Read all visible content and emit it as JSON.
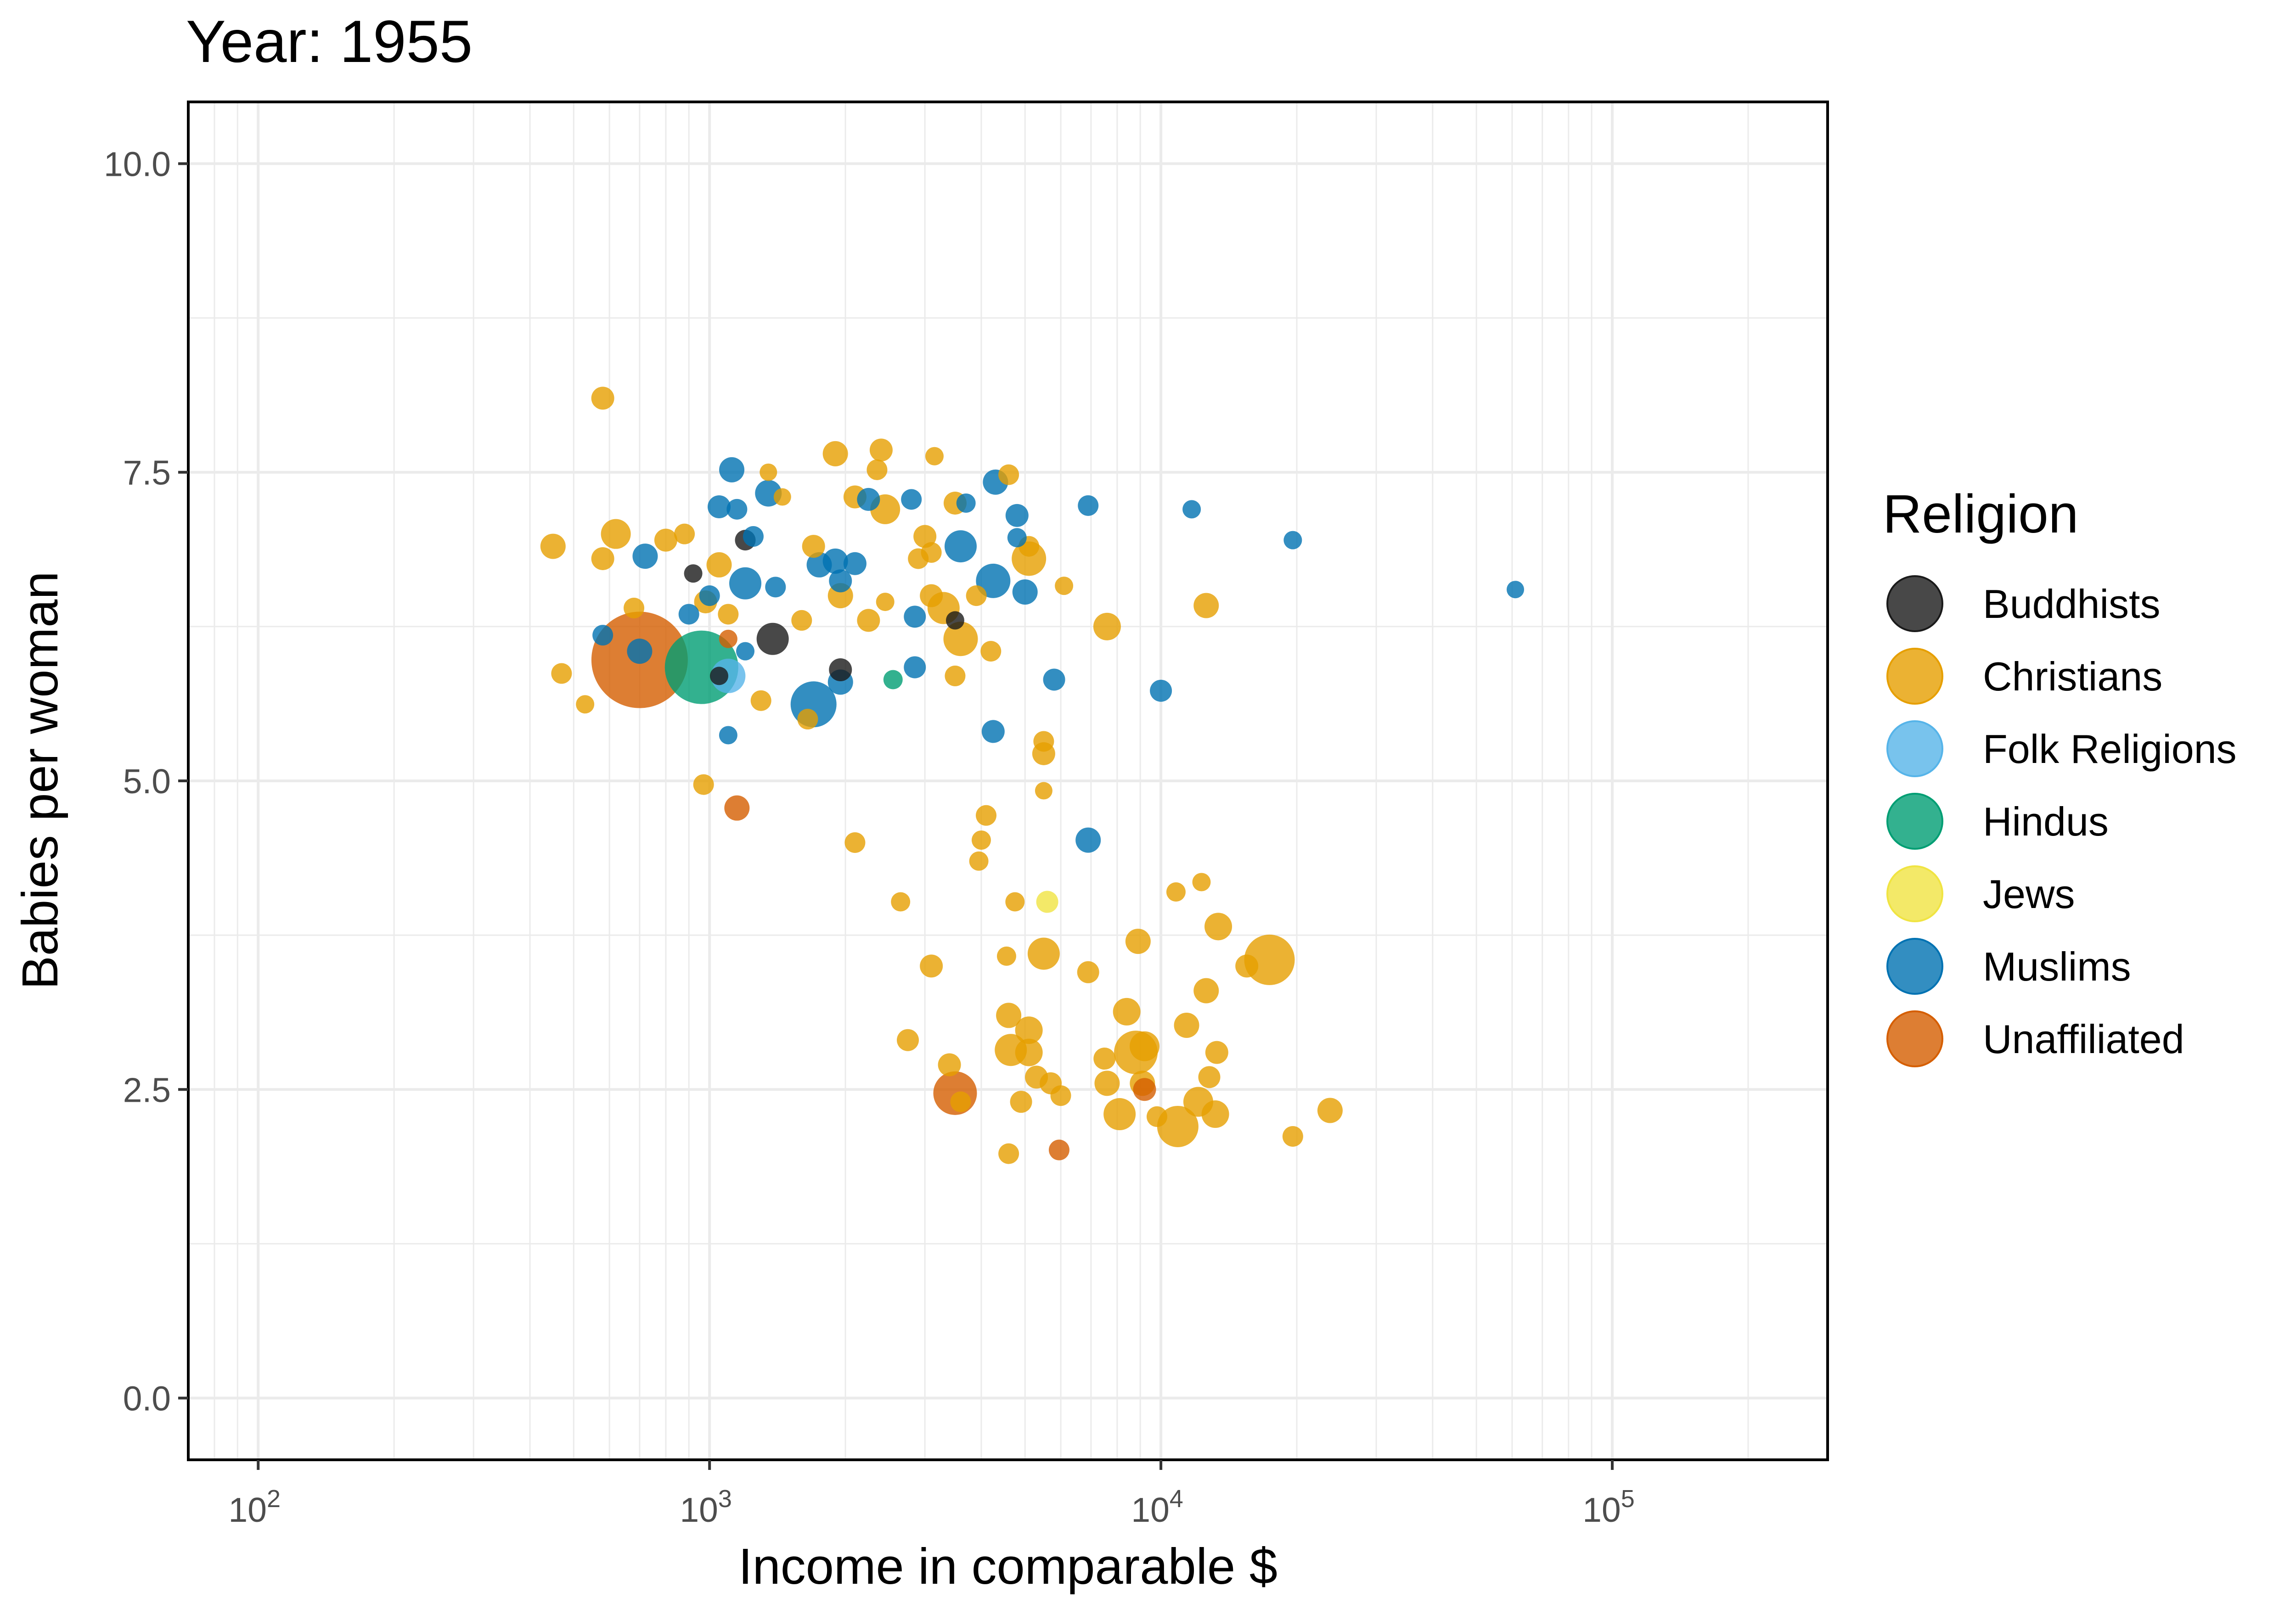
{
  "chart_data": {
    "type": "scatter",
    "title": "Year: 1955",
    "xlabel": "Income in comparable $",
    "ylabel": "Babies per woman",
    "x_scale": "log10",
    "xlim": [
      70,
      300000
    ],
    "ylim": [
      -0.5,
      10.5
    ],
    "x_ticks": [
      {
        "value": 100,
        "base": "10",
        "exp": "2"
      },
      {
        "value": 1000,
        "base": "10",
        "exp": "3"
      },
      {
        "value": 10000,
        "base": "10",
        "exp": "4"
      },
      {
        "value": 100000,
        "base": "10",
        "exp": "5"
      }
    ],
    "y_ticks": [
      {
        "value": 0,
        "label": "0.0"
      },
      {
        "value": 2.5,
        "label": "2.5"
      },
      {
        "value": 5,
        "label": "5.0"
      },
      {
        "value": 7.5,
        "label": "7.5"
      },
      {
        "value": 10,
        "label": "10.0"
      }
    ],
    "grid": true,
    "legend": {
      "title": "Religion",
      "position": "right"
    },
    "series": [
      {
        "name": "Buddhists",
        "color": "#1a1a1a",
        "points": [
          {
            "x": 920,
            "y": 6.68,
            "s": 40
          },
          {
            "x": 1200,
            "y": 6.95,
            "s": 45
          },
          {
            "x": 1380,
            "y": 6.15,
            "s": 70
          },
          {
            "x": 1950,
            "y": 5.9,
            "s": 50
          },
          {
            "x": 1050,
            "y": 5.85,
            "s": 40
          },
          {
            "x": 3500,
            "y": 6.3,
            "s": 40
          }
        ]
      },
      {
        "name": "Christians",
        "color": "#E69F00",
        "points": [
          {
            "x": 580,
            "y": 8.1,
            "s": 50
          },
          {
            "x": 450,
            "y": 6.9,
            "s": 55
          },
          {
            "x": 620,
            "y": 7.0,
            "s": 65
          },
          {
            "x": 580,
            "y": 6.8,
            "s": 50
          },
          {
            "x": 800,
            "y": 6.95,
            "s": 50
          },
          {
            "x": 880,
            "y": 7.0,
            "s": 45
          },
          {
            "x": 470,
            "y": 5.87,
            "s": 45
          },
          {
            "x": 530,
            "y": 5.62,
            "s": 40
          },
          {
            "x": 680,
            "y": 6.4,
            "s": 45
          },
          {
            "x": 1050,
            "y": 6.75,
            "s": 55
          },
          {
            "x": 980,
            "y": 6.45,
            "s": 50
          },
          {
            "x": 1100,
            "y": 6.35,
            "s": 45
          },
          {
            "x": 970,
            "y": 4.97,
            "s": 45
          },
          {
            "x": 1350,
            "y": 7.5,
            "s": 38
          },
          {
            "x": 1450,
            "y": 7.3,
            "s": 38
          },
          {
            "x": 1300,
            "y": 5.65,
            "s": 45
          },
          {
            "x": 1600,
            "y": 6.3,
            "s": 45
          },
          {
            "x": 1700,
            "y": 6.9,
            "s": 50
          },
          {
            "x": 1900,
            "y": 7.65,
            "s": 55
          },
          {
            "x": 1950,
            "y": 6.5,
            "s": 55
          },
          {
            "x": 1650,
            "y": 5.5,
            "s": 45
          },
          {
            "x": 2100,
            "y": 7.3,
            "s": 50
          },
          {
            "x": 2400,
            "y": 7.68,
            "s": 50
          },
          {
            "x": 2350,
            "y": 7.52,
            "s": 45
          },
          {
            "x": 2450,
            "y": 7.2,
            "s": 65
          },
          {
            "x": 2250,
            "y": 6.3,
            "s": 50
          },
          {
            "x": 2450,
            "y": 6.45,
            "s": 40
          },
          {
            "x": 2100,
            "y": 4.5,
            "s": 45
          },
          {
            "x": 2650,
            "y": 4.02,
            "s": 42
          },
          {
            "x": 2900,
            "y": 6.8,
            "s": 45
          },
          {
            "x": 3000,
            "y": 6.98,
            "s": 50
          },
          {
            "x": 3100,
            "y": 6.85,
            "s": 45
          },
          {
            "x": 3150,
            "y": 7.63,
            "s": 40
          },
          {
            "x": 3100,
            "y": 6.5,
            "s": 50
          },
          {
            "x": 3300,
            "y": 6.4,
            "s": 70
          },
          {
            "x": 3600,
            "y": 6.15,
            "s": 75
          },
          {
            "x": 3500,
            "y": 5.85,
            "s": 45
          },
          {
            "x": 3500,
            "y": 7.25,
            "s": 50
          },
          {
            "x": 3900,
            "y": 6.5,
            "s": 45
          },
          {
            "x": 4200,
            "y": 6.05,
            "s": 45
          },
          {
            "x": 4600,
            "y": 7.48,
            "s": 45
          },
          {
            "x": 5100,
            "y": 6.8,
            "s": 75
          },
          {
            "x": 5100,
            "y": 6.9,
            "s": 45
          },
          {
            "x": 5500,
            "y": 5.32,
            "s": 45
          },
          {
            "x": 5500,
            "y": 5.22,
            "s": 50
          },
          {
            "x": 5500,
            "y": 4.92,
            "s": 38
          },
          {
            "x": 6100,
            "y": 6.58,
            "s": 40
          },
          {
            "x": 4100,
            "y": 4.72,
            "s": 45
          },
          {
            "x": 4000,
            "y": 4.52,
            "s": 42
          },
          {
            "x": 3950,
            "y": 4.35,
            "s": 42
          },
          {
            "x": 4750,
            "y": 4.02,
            "s": 42
          },
          {
            "x": 5500,
            "y": 3.6,
            "s": 70
          },
          {
            "x": 4550,
            "y": 3.58,
            "s": 42
          },
          {
            "x": 3100,
            "y": 3.5,
            "s": 50
          },
          {
            "x": 4600,
            "y": 3.1,
            "s": 55
          },
          {
            "x": 5100,
            "y": 2.98,
            "s": 60
          },
          {
            "x": 4650,
            "y": 2.82,
            "s": 70
          },
          {
            "x": 5100,
            "y": 2.8,
            "s": 60
          },
          {
            "x": 2750,
            "y": 2.9,
            "s": 48
          },
          {
            "x": 3400,
            "y": 2.7,
            "s": 50
          },
          {
            "x": 5300,
            "y": 2.6,
            "s": 50
          },
          {
            "x": 5700,
            "y": 2.55,
            "s": 48
          },
          {
            "x": 4900,
            "y": 2.4,
            "s": 48
          },
          {
            "x": 6000,
            "y": 2.45,
            "s": 45
          },
          {
            "x": 3600,
            "y": 2.4,
            "s": 45
          },
          {
            "x": 4600,
            "y": 1.98,
            "s": 45
          },
          {
            "x": 6900,
            "y": 3.45,
            "s": 48
          },
          {
            "x": 7500,
            "y": 2.75,
            "s": 48
          },
          {
            "x": 7600,
            "y": 2.55,
            "s": 55
          },
          {
            "x": 8400,
            "y": 3.13,
            "s": 60
          },
          {
            "x": 8800,
            "y": 2.8,
            "s": 95
          },
          {
            "x": 9100,
            "y": 2.55,
            "s": 55
          },
          {
            "x": 8100,
            "y": 2.3,
            "s": 70
          },
          {
            "x": 8900,
            "y": 3.7,
            "s": 55
          },
          {
            "x": 9200,
            "y": 2.85,
            "s": 65
          },
          {
            "x": 9800,
            "y": 2.28,
            "s": 45
          },
          {
            "x": 10900,
            "y": 2.2,
            "s": 90
          },
          {
            "x": 10800,
            "y": 4.1,
            "s": 42
          },
          {
            "x": 11400,
            "y": 3.02,
            "s": 55
          },
          {
            "x": 12300,
            "y": 4.18,
            "s": 40
          },
          {
            "x": 12600,
            "y": 3.3,
            "s": 55
          },
          {
            "x": 13400,
            "y": 3.82,
            "s": 60
          },
          {
            "x": 13300,
            "y": 2.8,
            "s": 50
          },
          {
            "x": 12800,
            "y": 2.6,
            "s": 48
          },
          {
            "x": 12100,
            "y": 2.4,
            "s": 65
          },
          {
            "x": 13200,
            "y": 2.3,
            "s": 60
          },
          {
            "x": 15500,
            "y": 3.5,
            "s": 50
          },
          {
            "x": 17400,
            "y": 3.55,
            "s": 110
          },
          {
            "x": 19600,
            "y": 2.12,
            "s": 45
          },
          {
            "x": 23700,
            "y": 2.33,
            "s": 55
          },
          {
            "x": 12600,
            "y": 6.42,
            "s": 55
          },
          {
            "x": 7600,
            "y": 6.25,
            "s": 60
          }
        ]
      },
      {
        "name": "Folk Religions",
        "color": "#56B4E9",
        "points": [
          {
            "x": 1100,
            "y": 5.85,
            "s": 75
          }
        ]
      },
      {
        "name": "Hindus",
        "color": "#009E73",
        "points": [
          {
            "x": 960,
            "y": 5.92,
            "s": 160
          },
          {
            "x": 2550,
            "y": 5.82,
            "s": 42
          }
        ]
      },
      {
        "name": "Jews",
        "color": "#F0E442",
        "points": [
          {
            "x": 5600,
            "y": 4.02,
            "s": 48
          }
        ]
      },
      {
        "name": "Muslims",
        "color": "#0072B2",
        "points": [
          {
            "x": 1120,
            "y": 7.52,
            "s": 55
          },
          {
            "x": 1050,
            "y": 7.22,
            "s": 50
          },
          {
            "x": 1350,
            "y": 7.33,
            "s": 58
          },
          {
            "x": 1150,
            "y": 7.2,
            "s": 45
          },
          {
            "x": 1250,
            "y": 6.98,
            "s": 45
          },
          {
            "x": 720,
            "y": 6.82,
            "s": 55
          },
          {
            "x": 900,
            "y": 6.35,
            "s": 45
          },
          {
            "x": 1000,
            "y": 6.5,
            "s": 45
          },
          {
            "x": 1200,
            "y": 6.6,
            "s": 70
          },
          {
            "x": 1400,
            "y": 6.57,
            "s": 45
          },
          {
            "x": 580,
            "y": 6.18,
            "s": 45
          },
          {
            "x": 700,
            "y": 6.05,
            "s": 55
          },
          {
            "x": 1200,
            "y": 6.05,
            "s": 40
          },
          {
            "x": 1100,
            "y": 5.37,
            "s": 40
          },
          {
            "x": 1700,
            "y": 5.62,
            "s": 100
          },
          {
            "x": 1750,
            "y": 6.75,
            "s": 55
          },
          {
            "x": 1900,
            "y": 6.78,
            "s": 55
          },
          {
            "x": 1950,
            "y": 6.62,
            "s": 50
          },
          {
            "x": 2100,
            "y": 6.76,
            "s": 50
          },
          {
            "x": 2250,
            "y": 7.28,
            "s": 50
          },
          {
            "x": 1950,
            "y": 5.8,
            "s": 55
          },
          {
            "x": 2800,
            "y": 7.28,
            "s": 45
          },
          {
            "x": 2850,
            "y": 6.33,
            "s": 48
          },
          {
            "x": 2850,
            "y": 5.92,
            "s": 48
          },
          {
            "x": 3600,
            "y": 6.9,
            "s": 70
          },
          {
            "x": 3700,
            "y": 7.25,
            "s": 42
          },
          {
            "x": 4250,
            "y": 6.62,
            "s": 75
          },
          {
            "x": 4300,
            "y": 7.42,
            "s": 55
          },
          {
            "x": 4800,
            "y": 7.15,
            "s": 50
          },
          {
            "x": 4800,
            "y": 6.97,
            "s": 42
          },
          {
            "x": 5000,
            "y": 6.53,
            "s": 55
          },
          {
            "x": 4250,
            "y": 5.4,
            "s": 50
          },
          {
            "x": 5800,
            "y": 5.82,
            "s": 48
          },
          {
            "x": 6900,
            "y": 7.23,
            "s": 45
          },
          {
            "x": 6900,
            "y": 4.52,
            "s": 55
          },
          {
            "x": 10000,
            "y": 5.73,
            "s": 48
          },
          {
            "x": 11700,
            "y": 7.2,
            "s": 40
          },
          {
            "x": 19600,
            "y": 6.95,
            "s": 40
          },
          {
            "x": 61000,
            "y": 6.55,
            "s": 38
          }
        ]
      },
      {
        "name": "Unaffiliated",
        "color": "#D55E00",
        "points": [
          {
            "x": 700,
            "y": 5.98,
            "s": 210
          },
          {
            "x": 1150,
            "y": 4.78,
            "s": 55
          },
          {
            "x": 3500,
            "y": 2.47,
            "s": 95
          },
          {
            "x": 9200,
            "y": 2.5,
            "s": 50
          },
          {
            "x": 5950,
            "y": 2.01,
            "s": 45
          },
          {
            "x": 1100,
            "y": 6.15,
            "s": 40
          }
        ]
      }
    ]
  }
}
